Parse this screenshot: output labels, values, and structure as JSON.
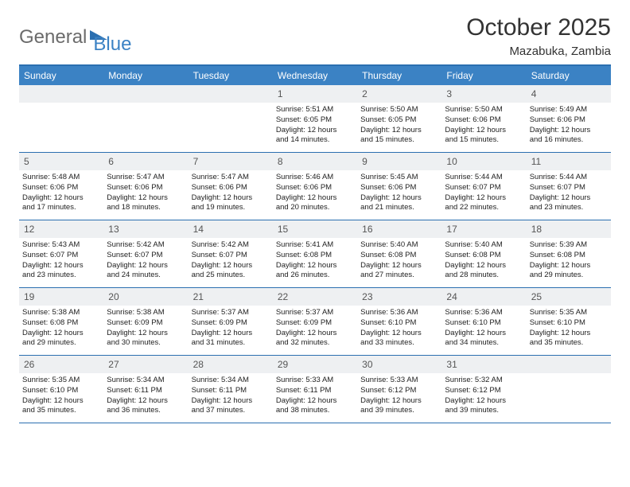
{
  "brand": {
    "part1": "General",
    "part2": "Blue"
  },
  "title": "October 2025",
  "location": "Mazabuka, Zambia",
  "colors": {
    "header_bg": "#3b82c4",
    "border": "#2b6fb0",
    "daynum_bg": "#eef0f2",
    "text": "#222222",
    "logo_gray": "#6b6b6b"
  },
  "day_labels": [
    "Sunday",
    "Monday",
    "Tuesday",
    "Wednesday",
    "Thursday",
    "Friday",
    "Saturday"
  ],
  "weeks": [
    [
      {
        "day": "",
        "empty": true
      },
      {
        "day": "",
        "empty": true
      },
      {
        "day": "",
        "empty": true
      },
      {
        "day": "1",
        "sunrise": "5:51 AM",
        "sunset": "6:05 PM",
        "daylight": "12 hours and 14 minutes."
      },
      {
        "day": "2",
        "sunrise": "5:50 AM",
        "sunset": "6:05 PM",
        "daylight": "12 hours and 15 minutes."
      },
      {
        "day": "3",
        "sunrise": "5:50 AM",
        "sunset": "6:06 PM",
        "daylight": "12 hours and 15 minutes."
      },
      {
        "day": "4",
        "sunrise": "5:49 AM",
        "sunset": "6:06 PM",
        "daylight": "12 hours and 16 minutes."
      }
    ],
    [
      {
        "day": "5",
        "sunrise": "5:48 AM",
        "sunset": "6:06 PM",
        "daylight": "12 hours and 17 minutes."
      },
      {
        "day": "6",
        "sunrise": "5:47 AM",
        "sunset": "6:06 PM",
        "daylight": "12 hours and 18 minutes."
      },
      {
        "day": "7",
        "sunrise": "5:47 AM",
        "sunset": "6:06 PM",
        "daylight": "12 hours and 19 minutes."
      },
      {
        "day": "8",
        "sunrise": "5:46 AM",
        "sunset": "6:06 PM",
        "daylight": "12 hours and 20 minutes."
      },
      {
        "day": "9",
        "sunrise": "5:45 AM",
        "sunset": "6:06 PM",
        "daylight": "12 hours and 21 minutes."
      },
      {
        "day": "10",
        "sunrise": "5:44 AM",
        "sunset": "6:07 PM",
        "daylight": "12 hours and 22 minutes."
      },
      {
        "day": "11",
        "sunrise": "5:44 AM",
        "sunset": "6:07 PM",
        "daylight": "12 hours and 23 minutes."
      }
    ],
    [
      {
        "day": "12",
        "sunrise": "5:43 AM",
        "sunset": "6:07 PM",
        "daylight": "12 hours and 23 minutes."
      },
      {
        "day": "13",
        "sunrise": "5:42 AM",
        "sunset": "6:07 PM",
        "daylight": "12 hours and 24 minutes."
      },
      {
        "day": "14",
        "sunrise": "5:42 AM",
        "sunset": "6:07 PM",
        "daylight": "12 hours and 25 minutes."
      },
      {
        "day": "15",
        "sunrise": "5:41 AM",
        "sunset": "6:08 PM",
        "daylight": "12 hours and 26 minutes."
      },
      {
        "day": "16",
        "sunrise": "5:40 AM",
        "sunset": "6:08 PM",
        "daylight": "12 hours and 27 minutes."
      },
      {
        "day": "17",
        "sunrise": "5:40 AM",
        "sunset": "6:08 PM",
        "daylight": "12 hours and 28 minutes."
      },
      {
        "day": "18",
        "sunrise": "5:39 AM",
        "sunset": "6:08 PM",
        "daylight": "12 hours and 29 minutes."
      }
    ],
    [
      {
        "day": "19",
        "sunrise": "5:38 AM",
        "sunset": "6:08 PM",
        "daylight": "12 hours and 29 minutes."
      },
      {
        "day": "20",
        "sunrise": "5:38 AM",
        "sunset": "6:09 PM",
        "daylight": "12 hours and 30 minutes."
      },
      {
        "day": "21",
        "sunrise": "5:37 AM",
        "sunset": "6:09 PM",
        "daylight": "12 hours and 31 minutes."
      },
      {
        "day": "22",
        "sunrise": "5:37 AM",
        "sunset": "6:09 PM",
        "daylight": "12 hours and 32 minutes."
      },
      {
        "day": "23",
        "sunrise": "5:36 AM",
        "sunset": "6:10 PM",
        "daylight": "12 hours and 33 minutes."
      },
      {
        "day": "24",
        "sunrise": "5:36 AM",
        "sunset": "6:10 PM",
        "daylight": "12 hours and 34 minutes."
      },
      {
        "day": "25",
        "sunrise": "5:35 AM",
        "sunset": "6:10 PM",
        "daylight": "12 hours and 35 minutes."
      }
    ],
    [
      {
        "day": "26",
        "sunrise": "5:35 AM",
        "sunset": "6:10 PM",
        "daylight": "12 hours and 35 minutes."
      },
      {
        "day": "27",
        "sunrise": "5:34 AM",
        "sunset": "6:11 PM",
        "daylight": "12 hours and 36 minutes."
      },
      {
        "day": "28",
        "sunrise": "5:34 AM",
        "sunset": "6:11 PM",
        "daylight": "12 hours and 37 minutes."
      },
      {
        "day": "29",
        "sunrise": "5:33 AM",
        "sunset": "6:11 PM",
        "daylight": "12 hours and 38 minutes."
      },
      {
        "day": "30",
        "sunrise": "5:33 AM",
        "sunset": "6:12 PM",
        "daylight": "12 hours and 39 minutes."
      },
      {
        "day": "31",
        "sunrise": "5:32 AM",
        "sunset": "6:12 PM",
        "daylight": "12 hours and 39 minutes."
      },
      {
        "day": "",
        "empty": true
      }
    ]
  ],
  "labels": {
    "sunrise": "Sunrise:",
    "sunset": "Sunset:",
    "daylight": "Daylight:"
  }
}
